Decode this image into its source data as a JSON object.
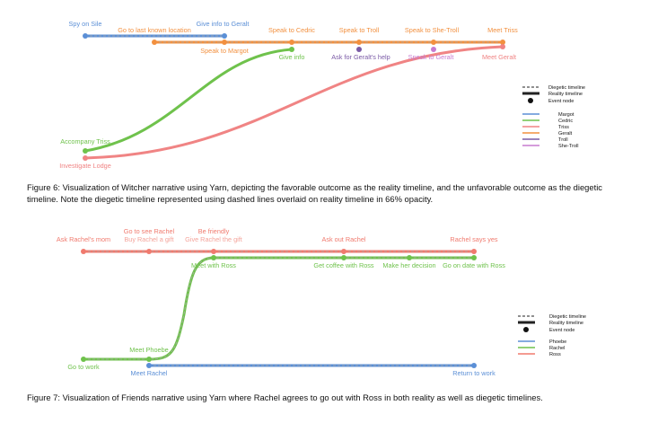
{
  "colors": {
    "margot": "#5b8fd6",
    "cedric": "#6fc24c",
    "triss": "#f08484",
    "geralt": "#f2903f",
    "troll": "#7a5aa6",
    "she_troll": "#c77bd0",
    "phoebe": "#5b8fd6",
    "rachel": "#6fc24c",
    "ross": "#f07a6e",
    "dashed": "#a8a8a8",
    "reality": "#222222"
  },
  "fig6": {
    "labels": {
      "spy_on_sile": "Spy on Sile",
      "go_to_last_known_location": "Go to last known location",
      "give_info_to_geralt": "Give info to Geralt",
      "speak_to_cedric": "Speak to Cedric",
      "speak_to_troll": "Speak to Troll",
      "speak_to_she_troll": "Speak to She-Troll",
      "meet_triss": "Meet Triss",
      "speak_to_margot": "Speak to Margot",
      "give_info": "Give info",
      "ask_for_geralts_help": "Ask for Geralt's help",
      "speak_to_geralt": "Speak to Geralt",
      "meet_geralt": "Meet Geralt",
      "accompany_triss": "Accompany Triss",
      "investigate_lodge": "Investigate Lodge"
    },
    "legend": {
      "diegetic": "Diegetic timeline",
      "reality": "Reality timeline",
      "event": "Event node",
      "characters": [
        "Margot",
        "Cedric",
        "Triss",
        "Geralt",
        "Troll",
        "She-Troll"
      ]
    },
    "caption": "Figure 6: Visualization of Witcher narrative using Yarn, depicting the favorable outcome as the reality timeline, and the unfavorable outcome as the diegetic timeline. Note the diegetic timeline represented using dashed lines overlaid on reality timeline in 66% opacity."
  },
  "fig7": {
    "labels": {
      "ask_rachels_mom": "Ask Rachel's mom",
      "go_to_see_rachel": "Go to see Rachel",
      "buy_rachel_a_gift": "Buy Rachel a gift",
      "be_friendly": "Be friendly",
      "give_rachel_the_gift": "Give Rachel the gift",
      "ask_out_rachel": "Ask out Rachel",
      "rachel_says_yes": "Rachel says yes",
      "meet_with_ross": "Meet with Ross",
      "get_coffee_with_ross": "Get coffee with Ross",
      "make_her_decision": "Make her decision",
      "go_on_date_with_ross": "Go on date with Ross",
      "meet_phoebe": "Meet Phoebe",
      "go_to_work": "Go to work",
      "meet_rachel": "Meet Rachel",
      "return_to_work": "Return to work"
    },
    "legend": {
      "diegetic": "Diegetic timeline",
      "reality": "Reality timeline",
      "event": "Event node",
      "characters": [
        "Phoebe",
        "Rachel",
        "Ross"
      ]
    },
    "caption": "Figure 7: Visualization of Friends narrative using Yarn where Rachel agrees to go out with Ross in both reality as well as diegetic timelines."
  }
}
